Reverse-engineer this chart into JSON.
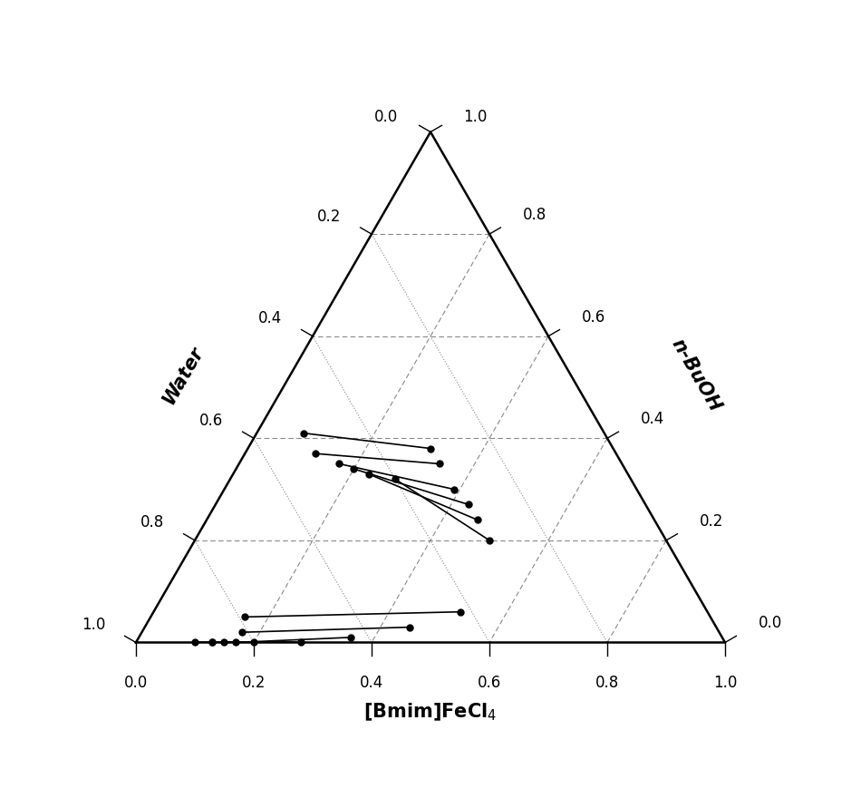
{
  "xlabel": "[Bmim]FeCl$_4$",
  "left_label": "Water",
  "right_label": "n-BuOH",
  "tick_values": [
    0.0,
    0.2,
    0.4,
    0.6,
    0.8,
    1.0
  ],
  "figsize": [
    9.5,
    8.8
  ],
  "dpi": 100,
  "tie_lines": [
    {
      "p1": [
        0.5,
        0.08,
        0.42
      ],
      "p2": [
        0.3,
        0.3,
        0.4
      ]
    },
    {
      "p1": [
        0.5,
        0.12,
        0.38
      ],
      "p2": [
        0.3,
        0.33,
        0.37
      ]
    },
    {
      "p1": [
        0.47,
        0.17,
        0.36
      ],
      "p2": [
        0.31,
        0.38,
        0.31
      ]
    },
    {
      "p1": [
        0.45,
        0.2,
        0.35
      ],
      "p2": [
        0.3,
        0.42,
        0.28
      ]
    },
    {
      "p1": [
        0.43,
        0.22,
        0.35
      ],
      "p2": [
        0.3,
        0.45,
        0.25
      ]
    },
    {
      "p1": [
        0.4,
        0.28,
        0.32
      ],
      "p2": [
        0.32,
        0.48,
        0.2
      ]
    },
    {
      "p1": [
        0.8,
        0.15,
        0.05
      ],
      "p2": [
        0.42,
        0.5,
        0.08
      ]
    },
    {
      "p1": [
        0.82,
        0.16,
        0.02
      ],
      "p2": [
        0.52,
        0.44,
        0.04
      ]
    },
    {
      "p1": [
        0.84,
        0.16,
        0.0
      ],
      "p2": [
        0.63,
        0.35,
        0.02
      ]
    },
    {
      "p1": [
        0.86,
        0.14,
        0.0
      ],
      "p2": [
        0.72,
        0.27,
        0.01
      ]
    },
    {
      "p1": [
        0.88,
        0.12,
        0.0
      ],
      "p2": [
        0.8,
        0.2,
        0.0
      ]
    },
    {
      "p1": [
        0.9,
        0.1,
        0.0
      ],
      "p2": [
        0.87,
        0.13,
        0.0
      ]
    }
  ]
}
